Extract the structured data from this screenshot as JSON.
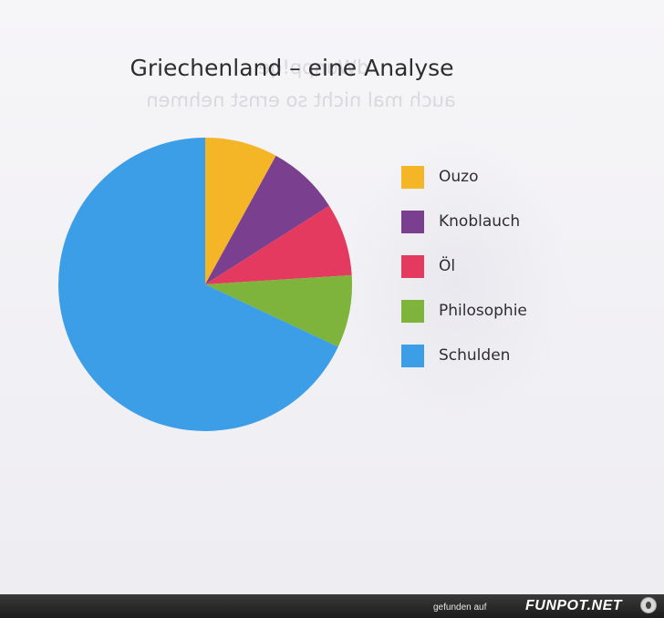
{
  "chart_data": {
    "type": "pie",
    "title": "Griechenland – eine Analyse",
    "slices": [
      {
        "label": "Ouzo",
        "value": 8,
        "color": "#f4b527"
      },
      {
        "label": "Knoblauch",
        "value": 8,
        "color": "#7a3f8e"
      },
      {
        "label": "Öl",
        "value": 8,
        "color": "#e43a5f"
      },
      {
        "label": "Philosophie",
        "value": 8,
        "color": "#7fb43c"
      },
      {
        "label": "Schulden",
        "value": 68,
        "color": "#3c9ee6"
      }
    ],
    "start_angle_deg": 0,
    "direction": "clockwise",
    "legend_position": "right"
  },
  "background_text": {
    "line1": "dWunpp!qe …",
    "line2": "auch mal nicht so ernst nehmen"
  },
  "footer": {
    "credit": "gefunden auf",
    "logo": "FUNPOT.NET"
  }
}
